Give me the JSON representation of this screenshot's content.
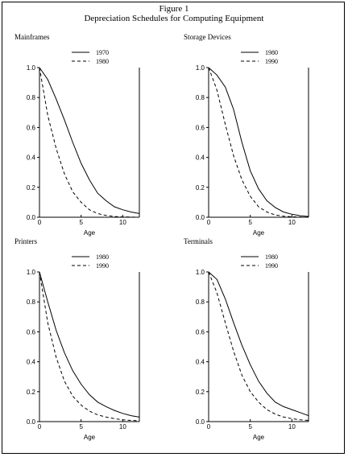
{
  "figure": {
    "number": "Figure 1",
    "title": "Depreciation Schedules for Computing Equipment"
  },
  "colors": {
    "line": "#000000",
    "background": "#ffffff"
  },
  "chart_data": [
    {
      "type": "line",
      "title": "Mainframes",
      "xlabel": "Age",
      "ylabel": "",
      "xlim": [
        0,
        12
      ],
      "ylim": [
        0,
        1
      ],
      "xticks": [
        0,
        5,
        10
      ],
      "yticks": [
        0,
        0.2,
        0.4,
        0.6,
        0.8,
        1.0
      ],
      "yticklabels": [
        "0.0",
        "0.2",
        "0.4",
        "0.6",
        "0.8",
        "1.0"
      ],
      "legend_position": "top-right",
      "grid": false,
      "series": [
        {
          "name": "1970",
          "style": "solid",
          "x": [
            0,
            1,
            2,
            3,
            4,
            5,
            6,
            7,
            8,
            9,
            10,
            11,
            12
          ],
          "values": [
            1.0,
            0.92,
            0.79,
            0.65,
            0.5,
            0.36,
            0.25,
            0.16,
            0.11,
            0.07,
            0.05,
            0.035,
            0.025
          ]
        },
        {
          "name": "1980",
          "style": "dashed",
          "x": [
            0,
            1,
            2,
            3,
            4,
            5,
            6,
            7,
            8,
            9,
            10,
            11,
            12
          ],
          "values": [
            1.0,
            0.68,
            0.46,
            0.29,
            0.17,
            0.1,
            0.05,
            0.025,
            0.012,
            0.005,
            0.002,
            0.001,
            0.0
          ]
        }
      ]
    },
    {
      "type": "line",
      "title": "Storage Devices",
      "xlabel": "Age",
      "ylabel": "",
      "xlim": [
        0,
        12
      ],
      "ylim": [
        0,
        1
      ],
      "xticks": [
        0,
        5,
        10
      ],
      "yticks": [
        0,
        0.2,
        0.4,
        0.6,
        0.8,
        1.0
      ],
      "yticklabels": [
        "0.0",
        "0.2",
        "0.4",
        "0.6",
        "0.8",
        "1.0"
      ],
      "legend_position": "top-right",
      "grid": false,
      "series": [
        {
          "name": "1980",
          "style": "solid",
          "x": [
            0,
            1,
            2,
            3,
            4,
            5,
            6,
            7,
            8,
            9,
            10,
            11,
            12
          ],
          "values": [
            1.0,
            0.95,
            0.87,
            0.72,
            0.5,
            0.31,
            0.19,
            0.11,
            0.065,
            0.035,
            0.02,
            0.01,
            0.005
          ]
        },
        {
          "name": "1990",
          "style": "dashed",
          "x": [
            0,
            1,
            2,
            3,
            4,
            5,
            6,
            7,
            8,
            9,
            10,
            11,
            12
          ],
          "values": [
            1.0,
            0.85,
            0.62,
            0.41,
            0.25,
            0.14,
            0.07,
            0.035,
            0.015,
            0.007,
            0.003,
            0.001,
            0.0
          ]
        }
      ]
    },
    {
      "type": "line",
      "title": "Printers",
      "xlabel": "Age",
      "ylabel": "",
      "xlim": [
        0,
        12
      ],
      "ylim": [
        0,
        1
      ],
      "xticks": [
        0,
        5,
        10
      ],
      "yticks": [
        0,
        0.2,
        0.4,
        0.6,
        0.8,
        1.0
      ],
      "yticklabels": [
        "0.0",
        "0.2",
        "0.4",
        "0.6",
        "0.8",
        "1.0"
      ],
      "legend_position": "top-right",
      "grid": false,
      "series": [
        {
          "name": "1980",
          "style": "solid",
          "x": [
            0,
            1,
            2,
            3,
            4,
            5,
            6,
            7,
            8,
            9,
            10,
            11,
            12
          ],
          "values": [
            1.0,
            0.8,
            0.61,
            0.46,
            0.34,
            0.25,
            0.18,
            0.13,
            0.1,
            0.075,
            0.055,
            0.04,
            0.03
          ]
        },
        {
          "name": "1990",
          "style": "dashed",
          "x": [
            0,
            1,
            2,
            3,
            4,
            5,
            6,
            7,
            8,
            9,
            10,
            11,
            12
          ],
          "values": [
            1.0,
            0.66,
            0.43,
            0.27,
            0.17,
            0.11,
            0.07,
            0.045,
            0.03,
            0.02,
            0.012,
            0.008,
            0.005
          ]
        }
      ]
    },
    {
      "type": "line",
      "title": "Terminals",
      "xlabel": "Age",
      "ylabel": "",
      "xlim": [
        0,
        12
      ],
      "ylim": [
        0,
        1
      ],
      "xticks": [
        0,
        5,
        10
      ],
      "yticks": [
        0,
        0.2,
        0.4,
        0.6,
        0.8,
        1.0
      ],
      "yticklabels": [
        "0.0",
        "0.2",
        "0.4",
        "0.6",
        "0.8",
        "1.0"
      ],
      "legend_position": "top-right",
      "grid": false,
      "series": [
        {
          "name": "1980",
          "style": "solid",
          "x": [
            0,
            1,
            2,
            3,
            4,
            5,
            6,
            7,
            8,
            9,
            10,
            11,
            12
          ],
          "values": [
            1.0,
            0.95,
            0.82,
            0.66,
            0.51,
            0.38,
            0.27,
            0.19,
            0.13,
            0.1,
            0.08,
            0.06,
            0.04
          ]
        },
        {
          "name": "1990",
          "style": "dashed",
          "x": [
            0,
            1,
            2,
            3,
            4,
            5,
            6,
            7,
            8,
            9,
            10,
            11,
            12
          ],
          "values": [
            1.0,
            0.86,
            0.66,
            0.47,
            0.31,
            0.2,
            0.13,
            0.08,
            0.05,
            0.03,
            0.02,
            0.012,
            0.008
          ]
        }
      ]
    }
  ]
}
